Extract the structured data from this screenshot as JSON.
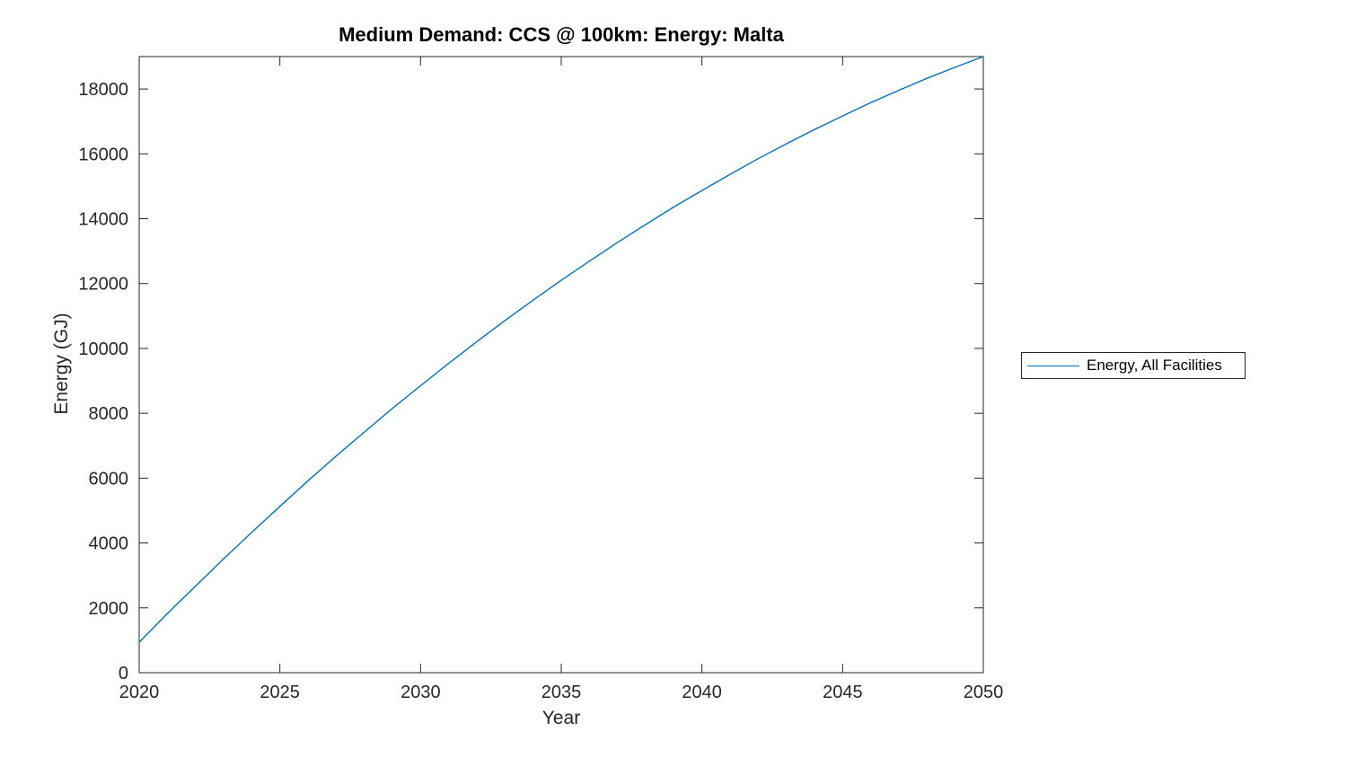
{
  "figure": {
    "background": "#ffffff"
  },
  "chart_data": {
    "type": "line",
    "title": "Medium Demand: CCS @ 100km: Energy: Malta",
    "xlabel": "Year",
    "ylabel": "Energy (GJ)",
    "xlim": [
      2020,
      2050
    ],
    "ylim": [
      0,
      19000
    ],
    "xticks": [
      2020,
      2025,
      2030,
      2035,
      2040,
      2045,
      2050
    ],
    "yticks": [
      0,
      2000,
      4000,
      6000,
      8000,
      10000,
      12000,
      14000,
      16000,
      18000
    ],
    "grid": false,
    "box": true,
    "tick_direction": "in",
    "axis_color": "#262626",
    "tick_label_color": "#262626",
    "legend": {
      "position": "outside-right",
      "border_color": "#262626",
      "items": [
        {
          "label": "Energy, All Facilities",
          "color": "#0072BD"
        }
      ]
    },
    "series": [
      {
        "name": "Energy, All Facilities",
        "color": "#0072BD",
        "x": [
          2020,
          2021,
          2022,
          2023,
          2024,
          2025,
          2026,
          2027,
          2028,
          2029,
          2030,
          2031,
          2032,
          2033,
          2034,
          2035,
          2036,
          2037,
          2038,
          2039,
          2040,
          2041,
          2042,
          2043,
          2044,
          2045,
          2046,
          2047,
          2048,
          2049,
          2050
        ],
        "values": [
          940,
          1820,
          2670,
          3510,
          4330,
          5130,
          5920,
          6680,
          7420,
          8150,
          8850,
          9540,
          10210,
          10860,
          11490,
          12100,
          12690,
          13270,
          13820,
          14360,
          14870,
          15370,
          15850,
          16310,
          16750,
          17170,
          17580,
          17960,
          18330,
          18670,
          19000
        ]
      }
    ]
  }
}
